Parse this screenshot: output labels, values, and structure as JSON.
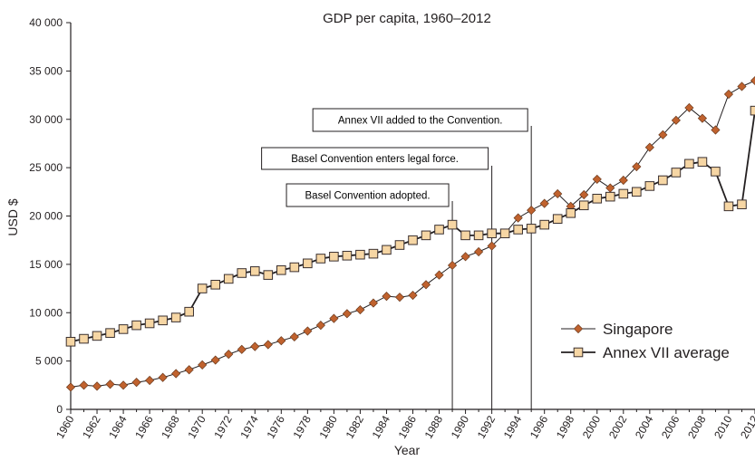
{
  "chart_data": {
    "type": "line",
    "title": "GDP per capita, 1960–2012",
    "xlabel": "Year",
    "ylabel": "USD $",
    "xlim": [
      1960,
      2012
    ],
    "ylim": [
      0,
      40000
    ],
    "y_ticks": [
      0,
      5000,
      10000,
      15000,
      20000,
      25000,
      30000,
      35000,
      40000
    ],
    "y_tick_labels": [
      "0",
      "5 000",
      "10 000",
      "15 000",
      "20 000",
      "25 000",
      "30 000",
      "35 000",
      "40 000"
    ],
    "x_ticks": [
      1960,
      1962,
      1964,
      1966,
      1968,
      1970,
      1972,
      1974,
      1976,
      1978,
      1980,
      1982,
      1984,
      1986,
      1988,
      1990,
      1992,
      1994,
      1996,
      1998,
      2000,
      2002,
      2004,
      2006,
      2008,
      2010,
      2012
    ],
    "x_tick_labels": [
      "1960",
      "1962",
      "1964",
      "1966",
      "1968",
      "1970",
      "1972",
      "1974",
      "1976",
      "1978",
      "1980",
      "1982",
      "1984",
      "1986",
      "1988",
      "1990",
      "1992",
      "1994",
      "1996",
      "1998",
      "2000",
      "2002",
      "2004",
      "2006",
      "2008",
      "2010",
      "2012"
    ],
    "legend_position": "right",
    "grid": false,
    "x": [
      1960,
      1961,
      1962,
      1963,
      1964,
      1965,
      1966,
      1967,
      1968,
      1969,
      1970,
      1971,
      1972,
      1973,
      1974,
      1975,
      1976,
      1977,
      1978,
      1979,
      1980,
      1981,
      1982,
      1983,
      1984,
      1985,
      1986,
      1987,
      1988,
      1989,
      1990,
      1991,
      1992,
      1993,
      1994,
      1995,
      1996,
      1997,
      1998,
      1999,
      2000,
      2001,
      2002,
      2003,
      2004,
      2005,
      2006,
      2007,
      2008,
      2009,
      2010,
      2011,
      2012
    ],
    "series": [
      {
        "name": "Singapore",
        "marker": "diamond",
        "color": "#c0622e",
        "values": [
          2300,
          2500,
          2400,
          2600,
          2500,
          2800,
          3000,
          3300,
          3700,
          4100,
          4600,
          5100,
          5700,
          6200,
          6500,
          6700,
          7100,
          7500,
          8100,
          8700,
          9400,
          9900,
          10300,
          11000,
          11700,
          11600,
          11800,
          12900,
          13900,
          14900,
          15800,
          16300,
          16900,
          18200,
          19800,
          20600,
          21300,
          22300,
          21000,
          22200,
          23800,
          22900,
          23700,
          25100,
          27100,
          28400,
          29900,
          31200,
          30100,
          28900,
          32600,
          33400,
          34000
        ]
      },
      {
        "name": "Annex VII average",
        "marker": "square",
        "color": "#f6d6a4",
        "values": [
          7000,
          7300,
          7600,
          7900,
          8300,
          8700,
          8900,
          9200,
          9500,
          10100,
          12500,
          12900,
          13500,
          14100,
          14300,
          13900,
          14400,
          14700,
          15100,
          15600,
          15800,
          15900,
          16000,
          16100,
          16500,
          17000,
          17500,
          18000,
          18600,
          19100,
          18000,
          18000,
          18200,
          18200,
          18600,
          18700,
          19100,
          19700,
          20300,
          21100,
          21800,
          22000,
          22300,
          22500,
          23100,
          23700,
          24500,
          25400,
          25600,
          24600,
          21000,
          21200,
          30900
        ]
      }
    ],
    "annotations": [
      {
        "label": "Basel Convention adopted.",
        "year": 1989
      },
      {
        "label": "Basel Convention enters legal force.",
        "year": 1992
      },
      {
        "label": "Annex VII added to the Convention.",
        "year": 1995
      }
    ]
  }
}
